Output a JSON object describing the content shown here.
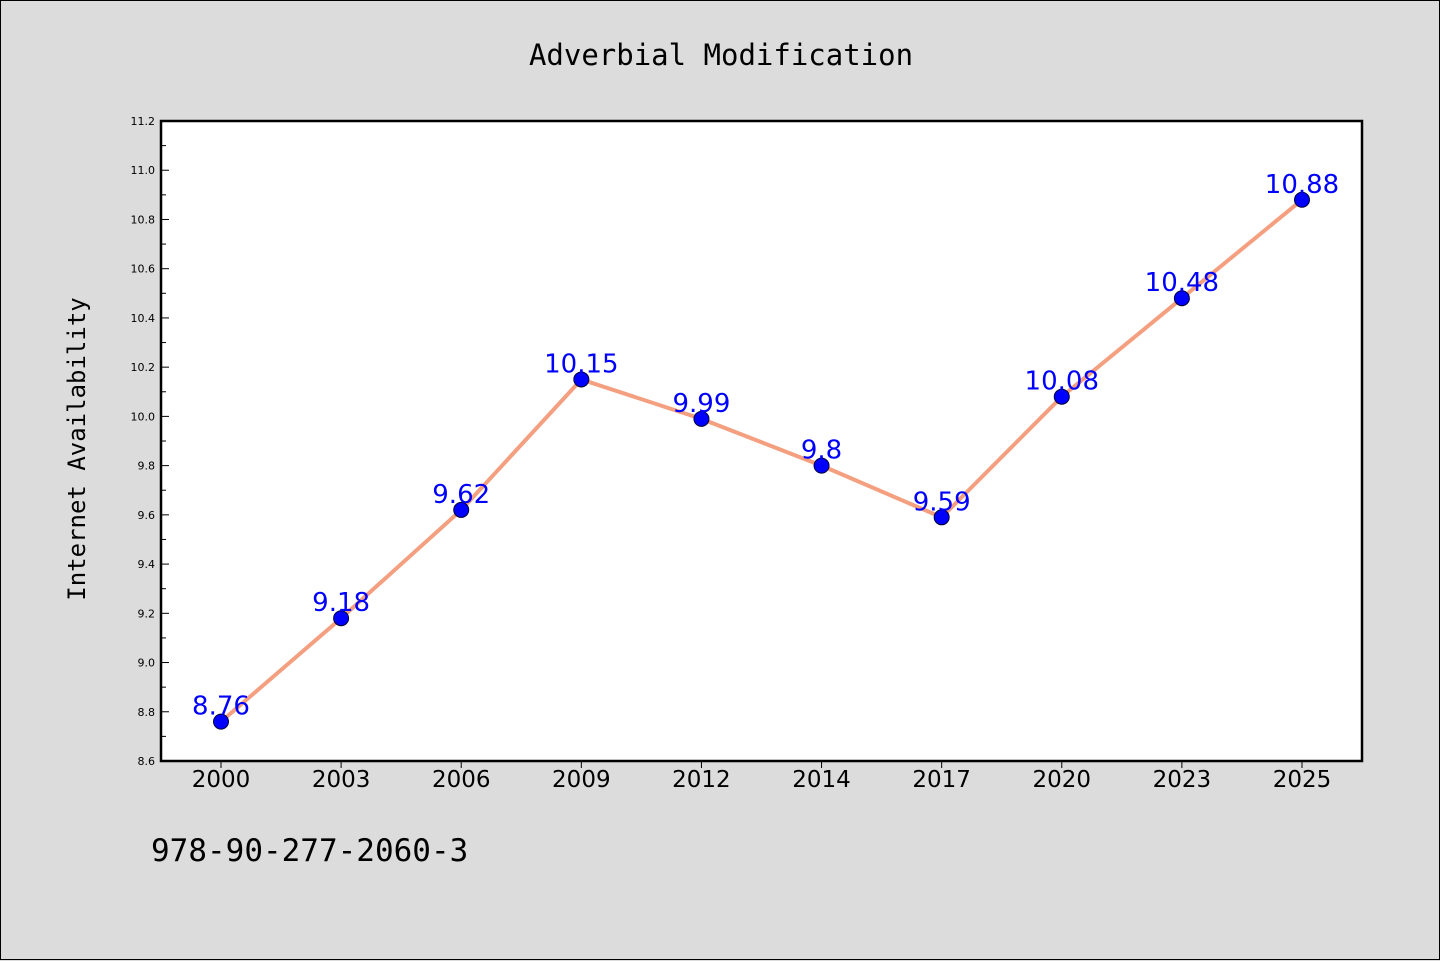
{
  "chart_data": {
    "type": "line",
    "title": "Adverbial Modification",
    "xlabel": "",
    "ylabel": "Internet Availability",
    "categories": [
      "2000",
      "2003",
      "2006",
      "2009",
      "2012",
      "2014",
      "2017",
      "2020",
      "2023",
      "2025"
    ],
    "series": [
      {
        "values": [
          8.76,
          9.18,
          9.62,
          10.15,
          9.99,
          9.8,
          9.59,
          10.08,
          10.48,
          10.88
        ],
        "labels": [
          "8.76",
          "9.18",
          "9.62",
          "10.15",
          "9.99",
          "9.8",
          "9.59",
          "10.08",
          "10.48",
          "10.88"
        ],
        "line_color": "#f4a080",
        "marker_color": "#0000ff",
        "label_color": "#0000ff"
      }
    ],
    "ylim": [
      8.6,
      11.2
    ],
    "yticks": [
      "8.6",
      "8.8",
      "9.0",
      "9.2",
      "9.4",
      "9.6",
      "9.8",
      "10.0",
      "10.2",
      "10.4",
      "10.6",
      "10.8",
      "11.0",
      "11.2"
    ],
    "grid": false,
    "legend": "none"
  },
  "footer": {
    "code": "978-90-277-2060-3"
  }
}
